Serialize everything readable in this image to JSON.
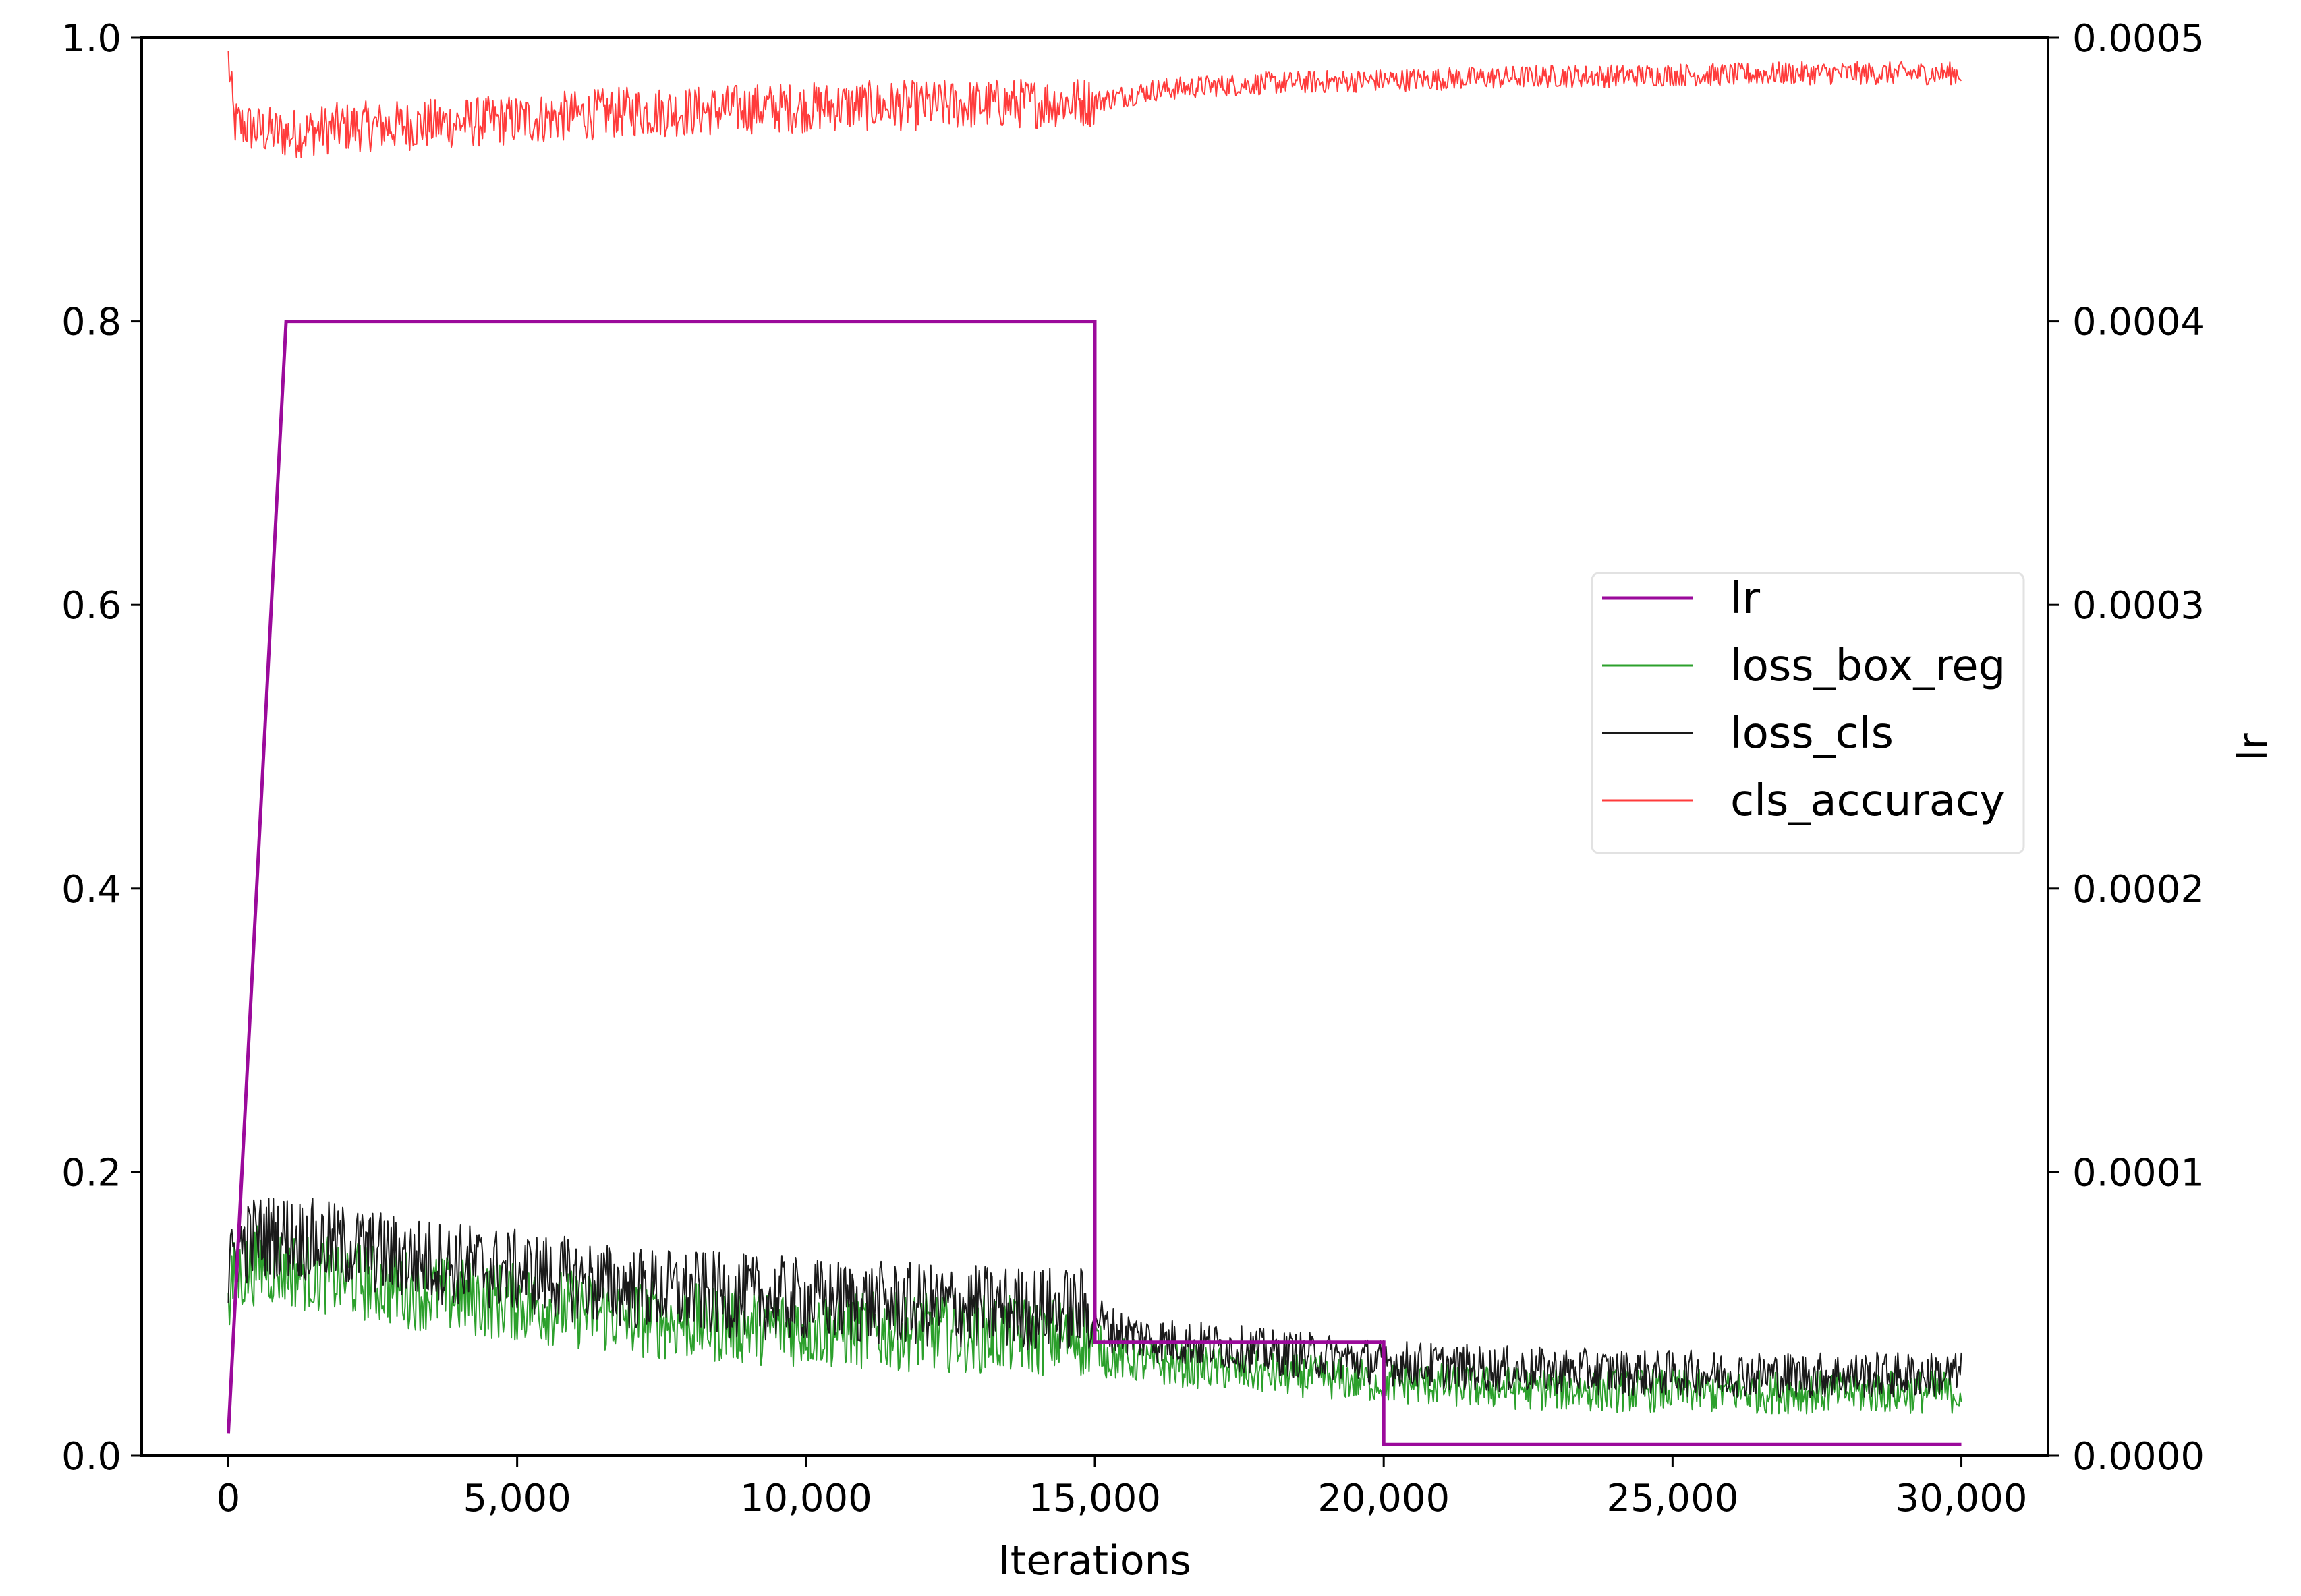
{
  "chart_data": {
    "type": "line",
    "title": "",
    "xlabel": "Iterations",
    "ylabel_left": "",
    "ylabel_right": "lr",
    "xlim": [
      -1500,
      31500
    ],
    "ylim_left": [
      0,
      1.0
    ],
    "ylim_right": [
      0,
      0.0005
    ],
    "x_ticks": [
      0,
      5000,
      10000,
      15000,
      20000,
      25000,
      30000
    ],
    "x_tick_labels": [
      "0",
      "5,000",
      "10,000",
      "15,000",
      "20,000",
      "25,000",
      "30,000"
    ],
    "y_left_ticks": [
      0,
      0.2,
      0.4,
      0.6,
      0.8,
      1.0
    ],
    "y_left_tick_labels": [
      "0.0",
      "0.2",
      "0.4",
      "0.6",
      "0.8",
      "1.0"
    ],
    "y_right_ticks": [
      0,
      0.0001,
      0.0002,
      0.0003,
      0.0004,
      0.0005
    ],
    "y_right_tick_labels": [
      "0.0000",
      "0.0001",
      "0.0002",
      "0.0003",
      "0.0004",
      "0.0005"
    ],
    "grid": false,
    "legend_position": "center-right",
    "legend": [
      "lr",
      "loss_box_reg",
      "loss_cls",
      "cls_accuracy"
    ],
    "series": [
      {
        "name": "lr",
        "axis": "right",
        "color": "#9b0a9b",
        "x": [
          0,
          1000,
          15000,
          15000,
          20000,
          20000,
          30000
        ],
        "y": [
          8e-06,
          0.0004,
          0.0004,
          4e-05,
          4e-05,
          4e-06,
          4e-06
        ]
      },
      {
        "name": "loss_box_reg",
        "axis": "left",
        "color": "#2ca02c",
        "x": [
          0,
          100,
          500,
          1000,
          2000,
          3000,
          4000,
          5000,
          6000,
          7000,
          8000,
          9000,
          10000,
          11000,
          12000,
          13000,
          14000,
          15000,
          15200,
          16000,
          17000,
          18000,
          19000,
          20000,
          21000,
          22000,
          23000,
          24000,
          25000,
          26000,
          27000,
          28000,
          29000,
          30000
        ],
        "y": [
          0.1,
          0.125,
          0.135,
          0.132,
          0.125,
          0.118,
          0.112,
          0.108,
          0.103,
          0.097,
          0.094,
          0.092,
          0.09,
          0.088,
          0.087,
          0.086,
          0.084,
          0.083,
          0.07,
          0.065,
          0.062,
          0.058,
          0.055,
          0.052,
          0.05,
          0.048,
          0.047,
          0.046,
          0.046,
          0.045,
          0.045,
          0.045,
          0.045,
          0.045
        ]
      },
      {
        "name": "loss_cls",
        "axis": "left",
        "color": "#1a1a1a",
        "x": [
          0,
          100,
          500,
          1000,
          2000,
          3000,
          4000,
          5000,
          6000,
          7000,
          8000,
          9000,
          10000,
          11000,
          12000,
          13000,
          14000,
          15000,
          15200,
          16000,
          17000,
          18000,
          19000,
          20000,
          21000,
          22000,
          23000,
          24000,
          25000,
          26000,
          27000,
          28000,
          29000,
          30000
        ],
        "y": [
          0.12,
          0.145,
          0.155,
          0.155,
          0.148,
          0.14,
          0.135,
          0.13,
          0.124,
          0.118,
          0.115,
          0.112,
          0.11,
          0.108,
          0.106,
          0.105,
          0.104,
          0.103,
          0.09,
          0.082,
          0.078,
          0.073,
          0.07,
          0.066,
          0.063,
          0.061,
          0.06,
          0.059,
          0.058,
          0.058,
          0.057,
          0.057,
          0.057,
          0.057
        ]
      },
      {
        "name": "cls_accuracy",
        "axis": "left",
        "color": "#ff3b3b",
        "x": [
          0,
          100,
          500,
          1000,
          2000,
          3000,
          4000,
          5000,
          6000,
          7000,
          8000,
          9000,
          10000,
          11000,
          12000,
          13000,
          14000,
          15000,
          16000,
          17000,
          18000,
          19000,
          20000,
          21000,
          22000,
          23000,
          24000,
          25000,
          26000,
          27000,
          28000,
          29000,
          30000
        ],
        "y": [
          0.985,
          0.94,
          0.935,
          0.932,
          0.937,
          0.938,
          0.94,
          0.942,
          0.945,
          0.948,
          0.948,
          0.95,
          0.951,
          0.952,
          0.952,
          0.953,
          0.954,
          0.955,
          0.963,
          0.966,
          0.968,
          0.969,
          0.97,
          0.971,
          0.972,
          0.973,
          0.973,
          0.974,
          0.974,
          0.975,
          0.975,
          0.975,
          0.975
        ]
      }
    ]
  }
}
